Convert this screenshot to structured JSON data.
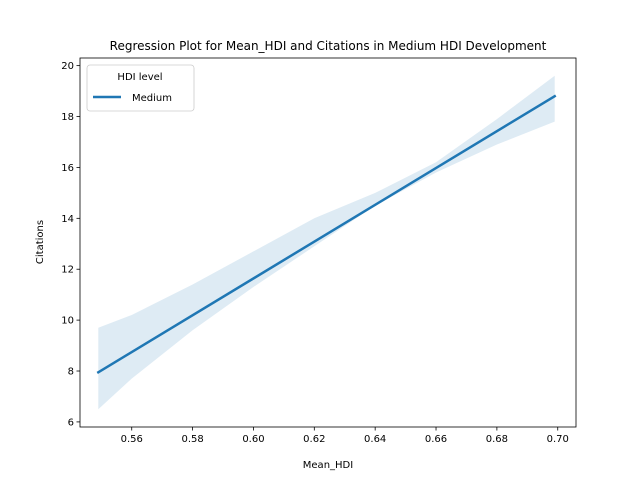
{
  "chart_data": {
    "type": "line",
    "title": "Regression Plot for Mean_HDI and Citations in Medium HDI Development",
    "xlabel": "Mean_HDI",
    "ylabel": "Citations",
    "xlim": [
      0.543,
      0.706
    ],
    "ylim": [
      5.8,
      20.3
    ],
    "xticks": [
      0.56,
      0.58,
      0.6,
      0.62,
      0.64,
      0.66,
      0.68,
      0.7
    ],
    "xtick_labels": [
      "0.56",
      "0.58",
      "0.60",
      "0.62",
      "0.64",
      "0.66",
      "0.68",
      "0.70"
    ],
    "yticks": [
      6,
      8,
      10,
      12,
      14,
      16,
      18,
      20
    ],
    "ytick_labels": [
      "6",
      "8",
      "10",
      "12",
      "14",
      "16",
      "18",
      "20"
    ],
    "grid": false,
    "legend": {
      "title": "HDI level",
      "placement": "top-left"
    },
    "series": [
      {
        "name": "Medium",
        "color": "#1f77b4",
        "band_color": "#1f77b4",
        "x": [
          0.549,
          0.699
        ],
        "y": [
          7.95,
          18.8
        ],
        "ci_x": [
          0.549,
          0.56,
          0.58,
          0.6,
          0.62,
          0.64,
          0.66,
          0.68,
          0.699
        ],
        "ci_lower": [
          6.5,
          7.7,
          9.6,
          11.3,
          12.9,
          14.5,
          15.8,
          16.9,
          17.8
        ],
        "ci_upper": [
          9.7,
          10.2,
          11.4,
          12.7,
          14.0,
          15.0,
          16.2,
          17.9,
          19.6
        ]
      }
    ]
  }
}
